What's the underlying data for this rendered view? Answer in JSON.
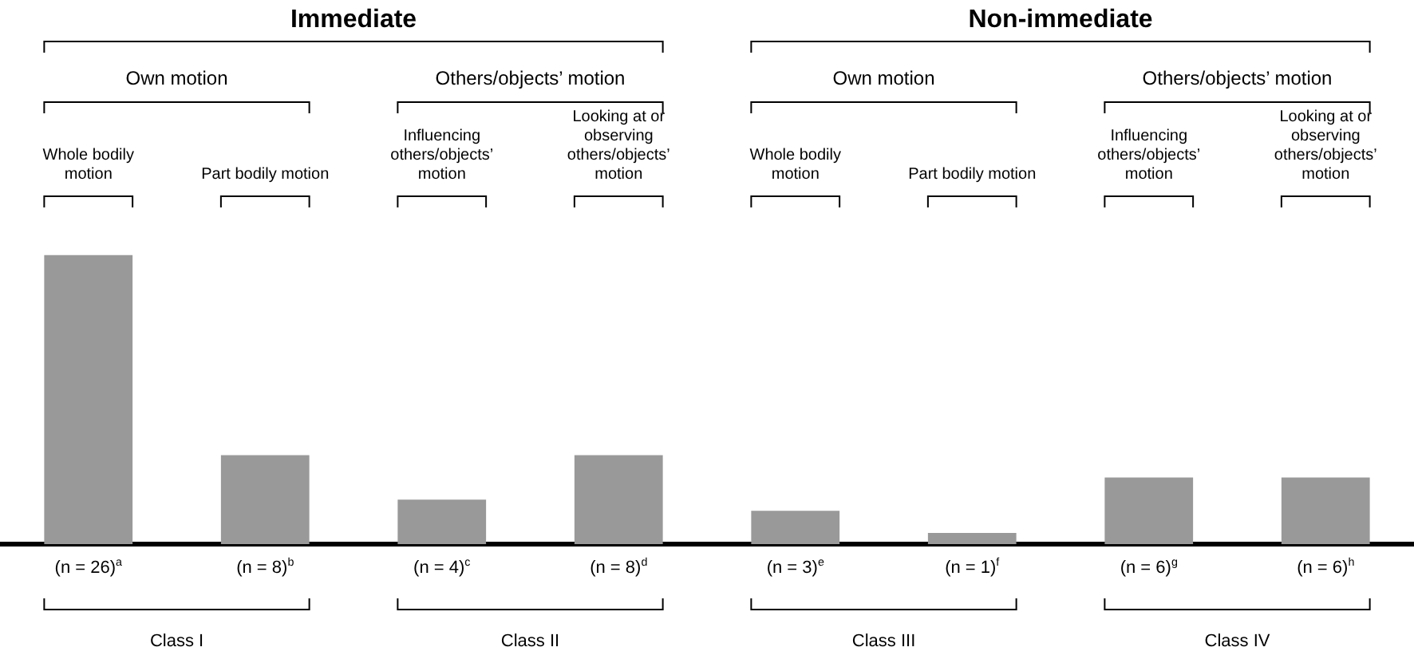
{
  "chart_data": {
    "type": "bar",
    "categories": [
      "Whole bodily motion",
      "Part bodily motion",
      "Influencing others/objects’ motion",
      "Looking at or observing others/objects’ motion",
      "Whole bodily motion",
      "Part bodily motion",
      "Influencing others/objects’ motion",
      "Looking at or observing others/objects’ motion"
    ],
    "values": [
      26,
      8,
      4,
      8,
      3,
      1,
      6,
      6
    ],
    "color": "#999999",
    "value_labels": [
      "(n = 26)$^{a}$",
      "(n = 8)$^{b}$",
      "(n = 4)$^{c}$",
      "(n = 8)$^{d}$",
      "(n = 3)$^{e}$",
      "(n = 1)$^{f}$",
      "(n = 6)$^{g}$",
      "(n = 6)$^{h}$"
    ],
    "annotations": [
      "Immediate",
      "Non-immediate",
      "Own motion",
      "Others/objects’ motion",
      "Own motion",
      "Others/objects’ motion",
      "Class I",
      "Class II",
      "Class III",
      "Class IV"
    ],
    "grid": false,
    "legend": false
  }
}
